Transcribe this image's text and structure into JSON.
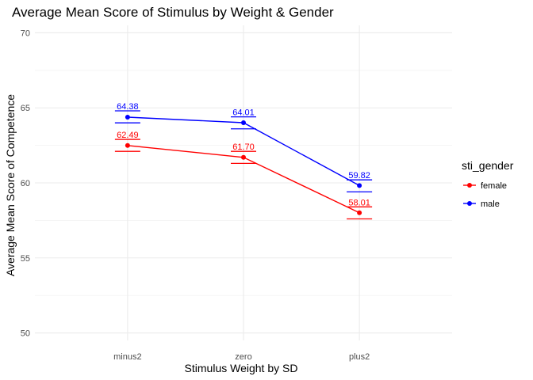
{
  "chart_data": {
    "type": "line",
    "title": "Average Mean Score of Stimulus by Weight & Gender",
    "xlabel": "Stimulus Weight by SD",
    "ylabel": "Average Mean Score of Competence",
    "categories": [
      "minus2",
      "zero",
      "plus2"
    ],
    "ylim": [
      49.5,
      70.5
    ],
    "yticks": [
      50,
      55,
      60,
      65,
      70
    ],
    "grid": true,
    "legend": {
      "title": "sti_gender",
      "position": "right"
    },
    "series": [
      {
        "name": "female",
        "color": "#ff0000",
        "values": [
          62.49,
          61.7,
          58.01
        ],
        "labels": [
          "62.49",
          "61.70",
          "58.01"
        ],
        "error_low": [
          62.1,
          61.3,
          57.6
        ],
        "error_high": [
          62.9,
          62.1,
          58.4
        ]
      },
      {
        "name": "male",
        "color": "#0000ff",
        "values": [
          64.38,
          64.01,
          59.82
        ],
        "labels": [
          "64.38",
          "64.01",
          "59.82"
        ],
        "error_low": [
          64.0,
          63.6,
          59.4
        ],
        "error_high": [
          64.8,
          64.4,
          60.2
        ]
      }
    ]
  }
}
